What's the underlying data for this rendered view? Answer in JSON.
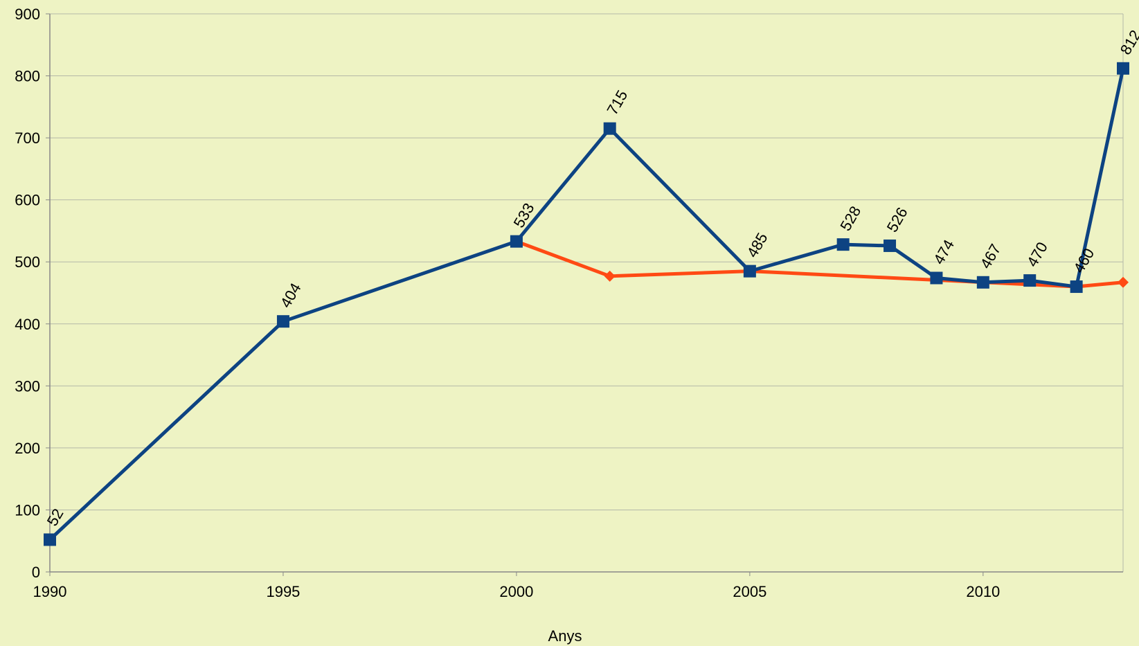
{
  "chart_data": {
    "type": "line",
    "xlabel": "Anys",
    "ylabel": "",
    "title": "",
    "xlim": [
      1990,
      2013
    ],
    "ylim": [
      0,
      900
    ],
    "x_ticks": [
      1990,
      1995,
      2000,
      2005,
      2010
    ],
    "y_ticks": [
      0,
      100,
      200,
      300,
      400,
      500,
      600,
      700,
      800,
      900
    ],
    "grid": "horizontal",
    "series": [
      {
        "color": "#ff4a14",
        "marker": "diamond",
        "points": [
          {
            "x": 2000,
            "y": 533
          },
          {
            "x": 2002,
            "y": 477
          },
          {
            "x": 2005,
            "y": 485
          },
          {
            "x": 2012,
            "y": 460
          },
          {
            "x": 2013,
            "y": 467
          }
        ]
      },
      {
        "color": "#0d4382",
        "marker": "square",
        "points": [
          {
            "x": 1990,
            "y": 52,
            "label": "52"
          },
          {
            "x": 1995,
            "y": 404,
            "label": "404"
          },
          {
            "x": 2000,
            "y": 533,
            "label": "533"
          },
          {
            "x": 2002,
            "y": 715,
            "label": "715"
          },
          {
            "x": 2005,
            "y": 485,
            "label": "485"
          },
          {
            "x": 2007,
            "y": 528,
            "label": "528"
          },
          {
            "x": 2008,
            "y": 526,
            "label": "526"
          },
          {
            "x": 2009,
            "y": 474,
            "label": "474"
          },
          {
            "x": 2010,
            "y": 467,
            "label": "467"
          },
          {
            "x": 2011,
            "y": 470,
            "label": "470"
          },
          {
            "x": 2012,
            "y": 460,
            "label": "460"
          },
          {
            "x": 2013,
            "y": 812,
            "label": "812"
          }
        ]
      }
    ]
  },
  "colors": {
    "background": "#eef3c4",
    "grid": "#b4b8a8",
    "axis": "#888888"
  }
}
